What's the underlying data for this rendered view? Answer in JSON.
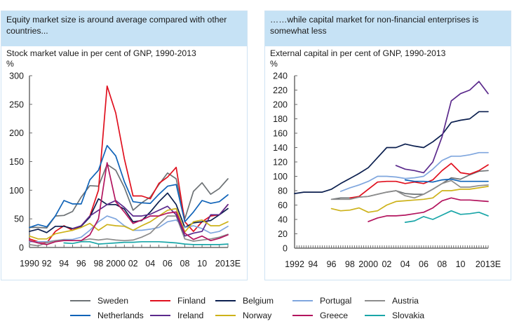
{
  "panels": [
    {
      "header": "Equity market size is around average compared with other countries...",
      "subtitle": "Stock market value in per cent of GNP, 1990-2013",
      "unit": "%"
    },
    {
      "header": "……while capital market for non-financial enterprises is somewhat less",
      "subtitle": "External capital in per cent of GNP, 1990-2013",
      "unit": "%"
    }
  ],
  "legend": [
    {
      "name": "Sweden",
      "color": "#6d7275"
    },
    {
      "name": "Finland",
      "color": "#e0101e"
    },
    {
      "name": "Belgium",
      "color": "#0b1f4f"
    },
    {
      "name": "Portugal",
      "color": "#7fa6de"
    },
    {
      "name": "Austria",
      "color": "#8c8c8c"
    },
    {
      "name": "Netherlands",
      "color": "#0f63b8"
    },
    {
      "name": "Ireland",
      "color": "#5b2a8c"
    },
    {
      "name": "Norway",
      "color": "#cdb21a"
    },
    {
      "name": "Greece",
      "color": "#b3145e"
    },
    {
      "name": "Slovakia",
      "color": "#1aa6a8"
    }
  ],
  "chart_data": [
    {
      "type": "line",
      "title": "Stock market value in per cent of GNP, 1990-2013",
      "ylabel": "%",
      "xlabel": "",
      "ylim": [
        0,
        300
      ],
      "yticks": [
        0,
        50,
        100,
        150,
        200,
        250,
        300
      ],
      "xlim": [
        1990,
        2013
      ],
      "xtick_labels": [
        {
          "x": 1990,
          "label": "1990"
        },
        {
          "x": 1992,
          "label": "92"
        },
        {
          "x": 1994,
          "label": "94"
        },
        {
          "x": 1996,
          "label": "96"
        },
        {
          "x": 1998,
          "label": "98"
        },
        {
          "x": 2000,
          "label": "2000"
        },
        {
          "x": 2002,
          "label": "02"
        },
        {
          "x": 2004,
          "label": "04"
        },
        {
          "x": 2006,
          "label": "06"
        },
        {
          "x": 2008,
          "label": "08"
        },
        {
          "x": 2010,
          "label": "10"
        },
        {
          "x": 2013,
          "label": "2013E"
        }
      ],
      "x": [
        1990,
        1991,
        1992,
        1993,
        1994,
        1995,
        1996,
        1997,
        1998,
        1999,
        2000,
        2001,
        2002,
        2003,
        2004,
        2005,
        2006,
        2007,
        2008,
        2009,
        2010,
        2011,
        2012,
        2013
      ],
      "series": [
        {
          "name": "Sweden",
          "values": [
            35,
            35,
            34,
            55,
            56,
            63,
            88,
            108,
            107,
            145,
            135,
            105,
            65,
            78,
            88,
            110,
            130,
            120,
            50,
            98,
            113,
            93,
            103,
            120
          ]
        },
        {
          "name": "Finland",
          "values": [
            15,
            10,
            8,
            28,
            38,
            30,
            38,
            55,
            100,
            282,
            235,
            155,
            90,
            90,
            85,
            112,
            123,
            140,
            45,
            28,
            45,
            55,
            57,
            75
          ]
        },
        {
          "name": "Belgium",
          "values": [
            28,
            32,
            26,
            37,
            37,
            33,
            37,
            53,
            85,
            75,
            75,
            67,
            45,
            47,
            62,
            80,
            95,
            75,
            35,
            43,
            45,
            47,
            57,
            68
          ]
        },
        {
          "name": "Portugal",
          "values": [
            10,
            10,
            10,
            12,
            14,
            14,
            18,
            30,
            45,
            55,
            50,
            38,
            30,
            30,
            32,
            35,
            45,
            48,
            35,
            38,
            33,
            25,
            28,
            37
          ]
        },
        {
          "name": "Austria",
          "values": [
            5,
            3,
            8,
            12,
            13,
            12,
            12,
            15,
            13,
            15,
            13,
            12,
            13,
            18,
            25,
            40,
            55,
            55,
            15,
            11,
            13,
            15,
            18,
            23
          ]
        },
        {
          "name": "Netherlands",
          "values": [
            35,
            40,
            36,
            55,
            82,
            76,
            76,
            118,
            135,
            178,
            160,
            115,
            80,
            78,
            77,
            93,
            107,
            110,
            45,
            62,
            82,
            77,
            80,
            92
          ]
        },
        {
          "name": "Ireland",
          "values": [
            null,
            null,
            null,
            null,
            null,
            33,
            38,
            55,
            65,
            75,
            82,
            70,
            55,
            55,
            58,
            65,
            72,
            57,
            20,
            25,
            28,
            57,
            57,
            75
          ]
        },
        {
          "name": "Norway",
          "values": [
            20,
            15,
            15,
            24,
            27,
            30,
            35,
            42,
            30,
            40,
            38,
            37,
            30,
            38,
            45,
            55,
            65,
            68,
            27,
            45,
            48,
            38,
            38,
            45
          ]
        },
        {
          "name": "Greece",
          "values": [
            12,
            8,
            5,
            10,
            12,
            12,
            12,
            22,
            50,
            148,
            80,
            62,
            42,
            48,
            55,
            55,
            60,
            62,
            25,
            14,
            20,
            12,
            16,
            22
          ]
        },
        {
          "name": "Slovakia",
          "values": [
            null,
            null,
            null,
            null,
            8,
            7,
            10,
            10,
            6,
            7,
            8,
            9,
            9,
            10,
            10,
            10,
            9,
            8,
            6,
            5,
            5,
            5,
            5,
            6
          ]
        }
      ]
    },
    {
      "type": "line",
      "title": "External capital in per cent of GNP, 1990-2013",
      "ylabel": "%",
      "xlabel": "",
      "ylim": [
        0,
        240
      ],
      "yticks": [
        0,
        20,
        40,
        60,
        80,
        100,
        120,
        140,
        160,
        180,
        200,
        220,
        240
      ],
      "xlim": [
        1992,
        2013
      ],
      "xtick_labels": [
        {
          "x": 1992,
          "label": "1992"
        },
        {
          "x": 1994,
          "label": "94"
        },
        {
          "x": 1996,
          "label": "96"
        },
        {
          "x": 1998,
          "label": "98"
        },
        {
          "x": 2000,
          "label": "2000"
        },
        {
          "x": 2002,
          "label": "02"
        },
        {
          "x": 2004,
          "label": "04"
        },
        {
          "x": 2006,
          "label": "06"
        },
        {
          "x": 2008,
          "label": "08"
        },
        {
          "x": 2010,
          "label": "10"
        },
        {
          "x": 2013,
          "label": "2013E"
        }
      ],
      "x": [
        1992,
        1993,
        1994,
        1995,
        1996,
        1997,
        1998,
        1999,
        2000,
        2001,
        2002,
        2003,
        2004,
        2005,
        2006,
        2007,
        2008,
        2009,
        2010,
        2011,
        2012,
        2013
      ],
      "series": [
        {
          "name": "Sweden",
          "values": [
            null,
            null,
            null,
            null,
            68,
            70,
            70,
            71,
            72,
            75,
            78,
            80,
            76,
            75,
            75,
            82,
            90,
            98,
            96,
            102,
            107,
            108
          ]
        },
        {
          "name": "Finland",
          "values": [
            null,
            null,
            null,
            null,
            null,
            null,
            70,
            72,
            82,
            92,
            93,
            93,
            90,
            92,
            90,
            95,
            108,
            118,
            105,
            103,
            108,
            116
          ]
        },
        {
          "name": "Belgium",
          "values": [
            76,
            78,
            78,
            78,
            82,
            90,
            97,
            104,
            112,
            126,
            140,
            140,
            145,
            142,
            140,
            148,
            158,
            175,
            178,
            180,
            190,
            190
          ]
        },
        {
          "name": "Portugal",
          "values": [
            null,
            null,
            null,
            null,
            null,
            79,
            84,
            88,
            93,
            100,
            100,
            99,
            97,
            98,
            100,
            110,
            122,
            128,
            128,
            130,
            133,
            133
          ]
        },
        {
          "name": "Austria",
          "values": [
            null,
            null,
            null,
            null,
            68,
            68,
            68,
            71,
            72,
            75,
            78,
            80,
            73,
            70,
            75,
            82,
            90,
            94,
            85,
            85,
            87,
            88
          ]
        },
        {
          "name": "Netherlands",
          "values": [
            null,
            null,
            null,
            null,
            null,
            null,
            null,
            null,
            null,
            null,
            null,
            null,
            95,
            93,
            93,
            92,
            95,
            96,
            93,
            93,
            93,
            93
          ]
        },
        {
          "name": "Ireland",
          "values": [
            null,
            null,
            null,
            null,
            null,
            null,
            null,
            null,
            null,
            null,
            null,
            115,
            110,
            108,
            105,
            120,
            155,
            205,
            215,
            220,
            232,
            215
          ]
        },
        {
          "name": "Norway",
          "values": [
            null,
            null,
            null,
            null,
            55,
            52,
            53,
            56,
            50,
            52,
            60,
            65,
            66,
            67,
            68,
            70,
            80,
            80,
            82,
            82,
            84,
            86
          ]
        },
        {
          "name": "Greece",
          "values": [
            null,
            null,
            null,
            null,
            null,
            null,
            null,
            null,
            37,
            42,
            45,
            45,
            46,
            48,
            50,
            56,
            66,
            70,
            67,
            67,
            66,
            65
          ]
        },
        {
          "name": "Slovakia",
          "values": [
            null,
            null,
            null,
            null,
            null,
            null,
            null,
            null,
            null,
            null,
            null,
            null,
            36,
            38,
            44,
            40,
            46,
            52,
            47,
            48,
            50,
            45
          ]
        }
      ]
    }
  ]
}
